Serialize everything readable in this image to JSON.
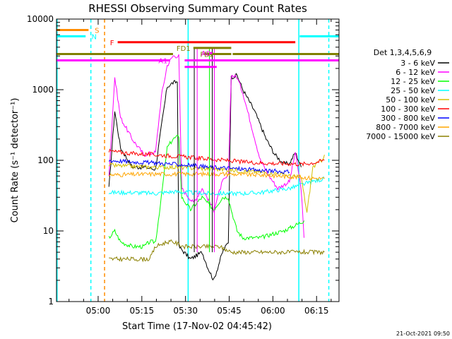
{
  "chart_data": {
    "type": "line",
    "title": "RHESSI Observing Summary Count Rates",
    "xlabel": "Start Time (17-Nov-02 04:45:42)",
    "ylabel": "Count Rate (s⁻¹ detector⁻¹)",
    "y_scale": "log",
    "ylim": [
      1,
      10000
    ],
    "xlim_minutes_after_start": [
      0,
      97
    ],
    "x_ticks": [
      {
        "label": "05:00",
        "t": 14.3
      },
      {
        "label": "05:15",
        "t": 29.3
      },
      {
        "label": "05:30",
        "t": 44.3
      },
      {
        "label": "05:45",
        "t": 59.3
      },
      {
        "label": "06:00",
        "t": 74.3
      },
      {
        "label": "06:15",
        "t": 89.3
      }
    ],
    "y_ticks": [
      {
        "label": "1",
        "v": 1
      },
      {
        "label": "10",
        "v": 10
      },
      {
        "label": "100",
        "v": 100
      },
      {
        "label": "1000",
        "v": 1000
      },
      {
        "label": "10000",
        "v": 10000
      }
    ],
    "legend_title": "Det 1,3,4,5,6,9",
    "legend_position": "right",
    "series": [
      {
        "name": "3 - 6 keV",
        "color": "#000000",
        "points": [
          [
            18,
            40
          ],
          [
            20,
            500
          ],
          [
            22,
            150
          ],
          [
            26,
            80
          ],
          [
            30,
            80
          ],
          [
            34,
            75
          ],
          [
            36,
            300
          ],
          [
            38,
            1100
          ],
          [
            40,
            1250
          ],
          [
            41.5,
            1300
          ],
          [
            42,
            6
          ],
          [
            46,
            4
          ],
          [
            50,
            5
          ],
          [
            52,
            3
          ],
          [
            54,
            2
          ],
          [
            57,
            5
          ],
          [
            59,
            7
          ],
          [
            60,
            1500
          ],
          [
            62,
            1600
          ],
          [
            64,
            1000
          ],
          [
            68,
            500
          ],
          [
            72,
            200
          ],
          [
            75,
            120
          ],
          [
            78,
            90
          ],
          [
            80,
            90
          ],
          [
            82,
            130
          ],
          [
            84,
            80
          ]
        ]
      },
      {
        "name": "6 - 12 keV",
        "color": "#ff00ff",
        "points": [
          [
            18,
            60
          ],
          [
            20,
            1500
          ],
          [
            22,
            400
          ],
          [
            26,
            200
          ],
          [
            30,
            120
          ],
          [
            34,
            130
          ],
          [
            36,
            800
          ],
          [
            38,
            2200
          ],
          [
            40,
            3000
          ],
          [
            42,
            3000
          ],
          [
            43,
            40
          ],
          [
            47,
            25
          ],
          [
            50,
            40
          ],
          [
            54,
            20
          ],
          [
            57,
            50
          ],
          [
            59,
            60
          ],
          [
            60,
            1600
          ],
          [
            62,
            1500
          ],
          [
            64,
            900
          ],
          [
            67,
            300
          ],
          [
            70,
            100
          ],
          [
            73,
            60
          ],
          [
            76,
            40
          ],
          [
            80,
            50
          ],
          [
            82,
            130
          ],
          [
            84,
            40
          ],
          [
            85,
            8
          ]
        ]
      },
      {
        "name": "12 - 25 keV",
        "color": "#00ff00",
        "points": [
          [
            18,
            8
          ],
          [
            20,
            10
          ],
          [
            22,
            7
          ],
          [
            26,
            6
          ],
          [
            30,
            6
          ],
          [
            32,
            7
          ],
          [
            34,
            7
          ],
          [
            36,
            30
          ],
          [
            38,
            150
          ],
          [
            40,
            200
          ],
          [
            42,
            220
          ],
          [
            43,
            30
          ],
          [
            46,
            20
          ],
          [
            50,
            30
          ],
          [
            54,
            20
          ],
          [
            57,
            30
          ],
          [
            59,
            30
          ],
          [
            60,
            20
          ],
          [
            62,
            10
          ],
          [
            64,
            8
          ],
          [
            67,
            8
          ],
          [
            70,
            8
          ],
          [
            74,
            9
          ],
          [
            78,
            10
          ],
          [
            82,
            12
          ],
          [
            85,
            14
          ]
        ]
      },
      {
        "name": "25 - 50 keV",
        "color": "#00ffff",
        "points": [
          [
            18,
            35
          ],
          [
            26,
            35
          ],
          [
            34,
            34
          ],
          [
            40,
            36
          ],
          [
            46,
            35
          ],
          [
            52,
            34
          ],
          [
            58,
            34
          ],
          [
            64,
            34
          ],
          [
            70,
            35
          ],
          [
            76,
            38
          ],
          [
            80,
            40
          ],
          [
            84,
            45
          ],
          [
            88,
            50
          ],
          [
            92,
            55
          ]
        ]
      },
      {
        "name": "50 - 100 keV",
        "color": "#d4c000",
        "points": [
          [
            18,
            85
          ],
          [
            26,
            82
          ],
          [
            34,
            80
          ],
          [
            40,
            80
          ],
          [
            46,
            78
          ],
          [
            52,
            76
          ],
          [
            58,
            74
          ],
          [
            64,
            70
          ],
          [
            70,
            68
          ],
          [
            76,
            65
          ],
          [
            80,
            60
          ],
          [
            84,
            58
          ],
          [
            86,
            18
          ],
          [
            88,
            80
          ],
          [
            91,
            100
          ],
          [
            92,
            120
          ]
        ]
      },
      {
        "name": "100 - 300 keV",
        "color": "#ff0000",
        "points": [
          [
            18,
            135
          ],
          [
            26,
            125
          ],
          [
            34,
            120
          ],
          [
            40,
            115
          ],
          [
            46,
            110
          ],
          [
            52,
            105
          ],
          [
            58,
            100
          ],
          [
            64,
            95
          ],
          [
            70,
            92
          ],
          [
            76,
            90
          ],
          [
            80,
            90
          ],
          [
            84,
            88
          ],
          [
            88,
            92
          ],
          [
            92,
            100
          ]
        ]
      },
      {
        "name": "300 - 800 keV",
        "color": "#0000ff",
        "points": [
          [
            18,
            100
          ],
          [
            26,
            95
          ],
          [
            34,
            92
          ],
          [
            40,
            88
          ],
          [
            46,
            85
          ],
          [
            52,
            80
          ],
          [
            58,
            78
          ],
          [
            64,
            75
          ],
          [
            70,
            72
          ],
          [
            76,
            70
          ],
          [
            80,
            68
          ]
        ]
      },
      {
        "name": "800 - 7000 keV",
        "color": "#ffa500",
        "points": [
          [
            18,
            62
          ],
          [
            26,
            63
          ],
          [
            34,
            64
          ],
          [
            40,
            64
          ],
          [
            46,
            64
          ],
          [
            52,
            64
          ],
          [
            58,
            64
          ],
          [
            64,
            63
          ],
          [
            70,
            62
          ],
          [
            76,
            60
          ],
          [
            82,
            58
          ],
          [
            88,
            56
          ],
          [
            92,
            55
          ]
        ]
      },
      {
        "name": "7000 - 15000 keV",
        "color": "#8b8000",
        "points": [
          [
            18,
            4
          ],
          [
            26,
            4
          ],
          [
            32,
            4
          ],
          [
            34,
            6
          ],
          [
            38,
            7
          ],
          [
            40,
            7
          ],
          [
            44,
            6
          ],
          [
            48,
            6
          ],
          [
            52,
            6
          ],
          [
            56,
            6
          ],
          [
            60,
            5
          ],
          [
            64,
            5
          ],
          [
            68,
            5
          ],
          [
            72,
            5
          ],
          [
            76,
            5
          ],
          [
            80,
            5
          ],
          [
            84,
            5
          ],
          [
            88,
            5
          ],
          [
            92,
            5
          ]
        ]
      }
    ],
    "spike_series": {
      "colors": [
        "#000000",
        "#ff00ff",
        "#00ff00"
      ],
      "spikes_t": [
        47.3,
        48.3,
        52.5,
        53.5,
        54.2
      ]
    },
    "attenuator_bars": [
      {
        "label": "S",
        "color": "#ff8c00",
        "level": 7000,
        "segments": [
          [
            0,
            11
          ]
        ]
      },
      {
        "label": "N",
        "color": "#00ffff",
        "level": 5700,
        "segments": [
          [
            0,
            10
          ],
          [
            83.5,
            97
          ]
        ]
      },
      {
        "label": "F",
        "color": "#ff0000",
        "level": 4700,
        "segments": [
          [
            21,
            82
          ]
        ]
      },
      {
        "label": "FD1",
        "color": "#808000",
        "level": 3900,
        "segments": [
          [
            47,
            60
          ]
        ]
      },
      {
        "label": "FD2",
        "color": "#808000",
        "level": 3200,
        "segments": [
          [
            0,
            40
          ],
          [
            50.5,
            60
          ],
          [
            60.5,
            97
          ]
        ]
      },
      {
        "label": "A0",
        "color": "#ff00ff",
        "level": 3300,
        "segments": [
          [
            52.5,
            53.5
          ]
        ]
      },
      {
        "label": "A1",
        "color": "#ff00ff",
        "level": 2600,
        "segments": [
          [
            0,
            39
          ],
          [
            44,
            97
          ]
        ]
      },
      {
        "label": "",
        "color": "#ff00ff",
        "level": 2100,
        "segments": [
          [
            44,
            55
          ]
        ]
      }
    ],
    "vertical_markers": [
      {
        "t": 0.2,
        "color": "#00ffff",
        "style": "solid"
      },
      {
        "t": 11.8,
        "color": "#00ffff",
        "style": "dashed"
      },
      {
        "t": 16.5,
        "color": "#ff8c00",
        "style": "dashed"
      },
      {
        "t": 45.2,
        "color": "#00ffff",
        "style": "solid"
      },
      {
        "t": 83.2,
        "color": "#00ffff",
        "style": "solid"
      },
      {
        "t": 93.5,
        "color": "#00ffff",
        "style": "dashed"
      }
    ]
  },
  "footer": {
    "timestamp": "21-Oct-2021 09:50"
  }
}
